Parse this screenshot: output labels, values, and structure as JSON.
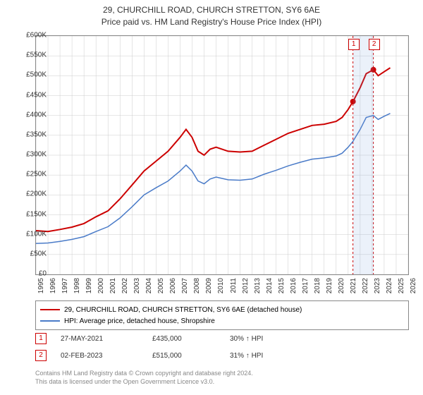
{
  "title_line1": "29, CHURCHILL ROAD, CHURCH STRETTON, SY6 6AE",
  "title_line2": "Price paid vs. HM Land Registry's House Price Index (HPI)",
  "chart": {
    "type": "line",
    "background_color": "#ffffff",
    "grid_color": "#cccccc",
    "border_color": "#888888",
    "x_axis": {
      "min": 1995,
      "max": 2026,
      "ticks": [
        1995,
        1996,
        1997,
        1998,
        1999,
        2000,
        2001,
        2002,
        2003,
        2004,
        2005,
        2006,
        2007,
        2008,
        2009,
        2010,
        2011,
        2012,
        2013,
        2014,
        2015,
        2016,
        2017,
        2018,
        2019,
        2020,
        2021,
        2022,
        2023,
        2024,
        2025,
        2026
      ],
      "label_fontsize": 10,
      "rotation": -90
    },
    "y_axis": {
      "min": 0,
      "max": 600000,
      "ticks": [
        0,
        50000,
        100000,
        150000,
        200000,
        250000,
        300000,
        350000,
        400000,
        450000,
        500000,
        550000,
        600000
      ],
      "labels": [
        "£0",
        "£50K",
        "£100K",
        "£150K",
        "£200K",
        "£250K",
        "£300K",
        "£350K",
        "£400K",
        "£450K",
        "£500K",
        "£550K",
        "£600K"
      ],
      "label_fontsize": 10
    },
    "highlight_band": {
      "x_start": 2021.4,
      "x_end": 2023.1,
      "color": "rgba(120,160,220,0.15)"
    },
    "series": [
      {
        "name": "property",
        "label": "29, CHURCHILL ROAD, CHURCH STRETTON, SY6 6AE (detached house)",
        "color": "#cc0000",
        "line_width": 2,
        "points": [
          [
            1995,
            110000
          ],
          [
            1996,
            108000
          ],
          [
            1997,
            113000
          ],
          [
            1998,
            119000
          ],
          [
            1999,
            128000
          ],
          [
            2000,
            145000
          ],
          [
            2001,
            160000
          ],
          [
            2002,
            190000
          ],
          [
            2003,
            225000
          ],
          [
            2004,
            260000
          ],
          [
            2005,
            285000
          ],
          [
            2006,
            310000
          ],
          [
            2007,
            345000
          ],
          [
            2007.5,
            365000
          ],
          [
            2008,
            345000
          ],
          [
            2008.5,
            310000
          ],
          [
            2009,
            300000
          ],
          [
            2009.5,
            315000
          ],
          [
            2010,
            320000
          ],
          [
            2011,
            310000
          ],
          [
            2012,
            308000
          ],
          [
            2013,
            310000
          ],
          [
            2014,
            325000
          ],
          [
            2015,
            340000
          ],
          [
            2016,
            355000
          ],
          [
            2017,
            365000
          ],
          [
            2018,
            375000
          ],
          [
            2019,
            378000
          ],
          [
            2020,
            385000
          ],
          [
            2020.5,
            395000
          ],
          [
            2021,
            415000
          ],
          [
            2021.4,
            435000
          ],
          [
            2022,
            470000
          ],
          [
            2022.5,
            505000
          ],
          [
            2023.1,
            515000
          ],
          [
            2023.5,
            500000
          ],
          [
            2024,
            510000
          ],
          [
            2024.5,
            520000
          ]
        ]
      },
      {
        "name": "hpi",
        "label": "HPI: Average price, detached house, Shropshire",
        "color": "#4a7bc8",
        "line_width": 1.5,
        "points": [
          [
            1995,
            78000
          ],
          [
            1996,
            79000
          ],
          [
            1997,
            83000
          ],
          [
            1998,
            88000
          ],
          [
            1999,
            95000
          ],
          [
            2000,
            108000
          ],
          [
            2001,
            120000
          ],
          [
            2002,
            142000
          ],
          [
            2003,
            170000
          ],
          [
            2004,
            200000
          ],
          [
            2005,
            218000
          ],
          [
            2006,
            235000
          ],
          [
            2007,
            260000
          ],
          [
            2007.5,
            275000
          ],
          [
            2008,
            260000
          ],
          [
            2008.5,
            235000
          ],
          [
            2009,
            228000
          ],
          [
            2009.5,
            240000
          ],
          [
            2010,
            245000
          ],
          [
            2011,
            238000
          ],
          [
            2012,
            237000
          ],
          [
            2013,
            240000
          ],
          [
            2014,
            252000
          ],
          [
            2015,
            262000
          ],
          [
            2016,
            273000
          ],
          [
            2017,
            282000
          ],
          [
            2018,
            290000
          ],
          [
            2019,
            293000
          ],
          [
            2020,
            298000
          ],
          [
            2020.5,
            305000
          ],
          [
            2021,
            320000
          ],
          [
            2021.4,
            335000
          ],
          [
            2022,
            365000
          ],
          [
            2022.5,
            395000
          ],
          [
            2023.1,
            400000
          ],
          [
            2023.5,
            390000
          ],
          [
            2024,
            398000
          ],
          [
            2024.5,
            405000
          ]
        ]
      }
    ],
    "markers": [
      {
        "n": "1",
        "x": 2021.4,
        "y": 435000,
        "color": "#cc0000"
      },
      {
        "n": "2",
        "x": 2023.1,
        "y": 515000,
        "color": "#cc0000"
      }
    ]
  },
  "legend": {
    "border_color": "#888888",
    "fontsize": 10
  },
  "sales": [
    {
      "n": "1",
      "date": "27-MAY-2021",
      "price": "£435,000",
      "pct": "30% ↑ HPI"
    },
    {
      "n": "2",
      "date": "02-FEB-2023",
      "price": "£515,000",
      "pct": "31% ↑ HPI"
    }
  ],
  "footer_line1": "Contains HM Land Registry data © Crown copyright and database right 2024.",
  "footer_line2": "This data is licensed under the Open Government Licence v3.0."
}
